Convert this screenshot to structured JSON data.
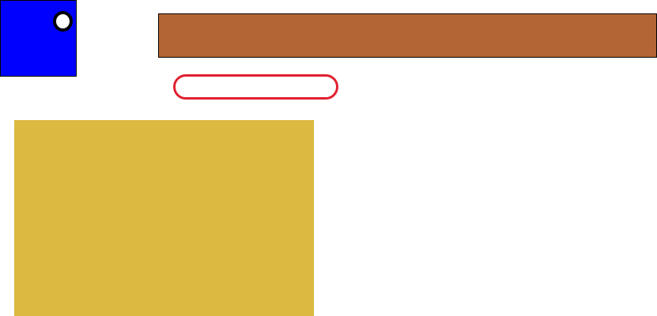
{
  "canvas": {
    "background": "#ffffff"
  },
  "shapes": {
    "blue_square": {
      "fill": "#0000ff"
    },
    "circle_knob": {
      "fill": "#ffffff",
      "stroke": "#000000"
    },
    "brown_bar": {
      "fill": "#b46535"
    },
    "red_pill": {
      "stroke": "#e02030"
    },
    "gold_rect": {
      "fill": "#dcb940"
    }
  }
}
